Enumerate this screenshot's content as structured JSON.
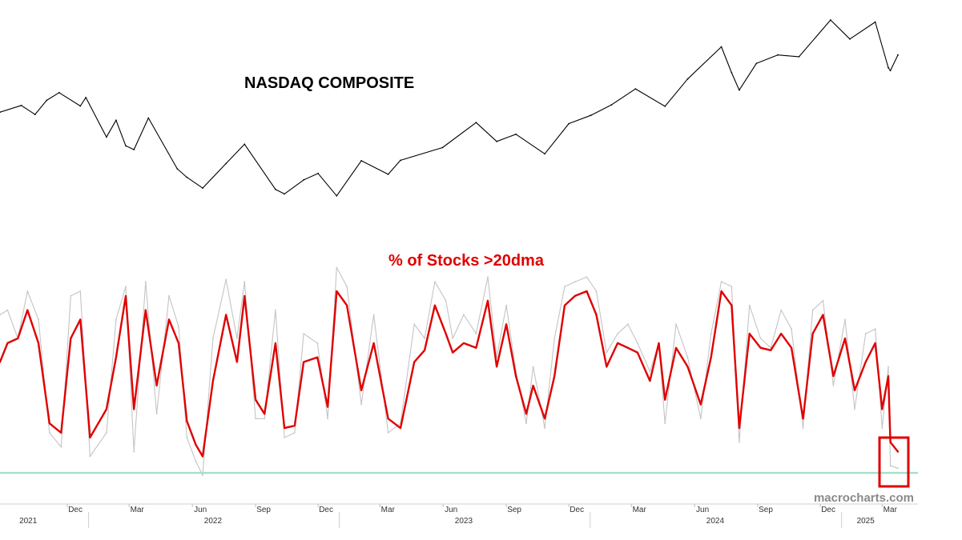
{
  "chart_data": [
    {
      "type": "line",
      "title": "NASDAQ COMPOSITE",
      "y_axis_labels": false,
      "grid": false,
      "series": [
        {
          "style": "black",
          "x": [
            "2021-08-25",
            "2021-09-25",
            "2021-10-15",
            "2021-11-01",
            "2021-11-19",
            "2021-12-20",
            "2021-12-28",
            "2022-01-27",
            "2022-02-10",
            "2022-02-24",
            "2022-03-08",
            "2022-03-29",
            "2022-05-10",
            "2022-05-24",
            "2022-06-16",
            "2022-07-20",
            "2022-08-16",
            "2022-09-30",
            "2022-10-13",
            "2022-11-10",
            "2022-12-01",
            "2022-12-28",
            "2023-02-02",
            "2023-03-13",
            "2023-03-31",
            "2023-05-31",
            "2023-07-19",
            "2023-08-18",
            "2023-09-15",
            "2023-10-27",
            "2023-12-01",
            "2024-01-02",
            "2024-02-01",
            "2024-03-07",
            "2024-04-19",
            "2024-05-22",
            "2024-07-10",
            "2024-07-25",
            "2024-08-05",
            "2024-08-30",
            "2024-09-30",
            "2024-10-31",
            "2024-12-16",
            "2025-01-13",
            "2025-02-19",
            "2025-03-10",
            "2025-03-13",
            "2025-03-24"
          ],
          "y": [
            14950,
            15330,
            14820,
            15620,
            16057,
            15300,
            15780,
            13540,
            14490,
            13040,
            12830,
            14620,
            11740,
            11260,
            10650,
            12040,
            13130,
            10575,
            10320,
            11110,
            11480,
            10210,
            12200,
            11430,
            12220,
            12940,
            14360,
            13290,
            13700,
            12590,
            14300,
            14770,
            15360,
            16270,
            15280,
            16830,
            18650,
            17180,
            16200,
            17710,
            18190,
            18090,
            20170,
            19090,
            20056,
            17470,
            17300,
            18190
          ]
        }
      ]
    },
    {
      "type": "line",
      "title": "% of Stocks >20dma",
      "y_axis_labels": false,
      "grid": false,
      "reference_line": 3,
      "series": [
        {
          "style": "raw (gray)",
          "x": [
            "2021-08-25",
            "2021-09-05",
            "2021-09-20",
            "2021-10-04",
            "2021-10-20",
            "2021-11-05",
            "2021-11-22",
            "2021-12-06",
            "2021-12-20",
            "2022-01-03",
            "2022-01-27",
            "2022-02-10",
            "2022-02-24",
            "2022-03-08",
            "2022-03-25",
            "2022-04-10",
            "2022-04-28",
            "2022-05-12",
            "2022-05-24",
            "2022-06-06",
            "2022-06-16",
            "2022-07-01",
            "2022-07-20",
            "2022-08-05",
            "2022-08-16",
            "2022-09-01",
            "2022-09-14",
            "2022-09-30",
            "2022-10-13",
            "2022-10-28",
            "2022-11-10",
            "2022-11-30",
            "2022-12-15",
            "2022-12-28",
            "2023-01-12",
            "2023-02-02",
            "2023-02-20",
            "2023-03-13",
            "2023-03-31",
            "2023-04-20",
            "2023-05-05",
            "2023-05-20",
            "2023-06-05",
            "2023-06-15",
            "2023-07-01",
            "2023-07-19",
            "2023-08-05",
            "2023-08-18",
            "2023-09-01",
            "2023-09-15",
            "2023-09-30",
            "2023-10-10",
            "2023-10-27",
            "2023-11-10",
            "2023-11-25",
            "2023-12-10",
            "2023-12-27",
            "2024-01-10",
            "2024-01-25",
            "2024-02-10",
            "2024-02-25",
            "2024-03-10",
            "2024-03-28",
            "2024-04-10",
            "2024-04-19",
            "2024-05-05",
            "2024-05-22",
            "2024-06-10",
            "2024-06-25",
            "2024-07-10",
            "2024-07-25",
            "2024-08-05",
            "2024-08-20",
            "2024-09-05",
            "2024-09-20",
            "2024-10-05",
            "2024-10-20",
            "2024-11-06",
            "2024-11-20",
            "2024-12-05",
            "2024-12-20",
            "2025-01-06",
            "2025-01-20",
            "2025-02-05",
            "2025-02-19",
            "2025-03-01",
            "2025-03-10",
            "2025-03-13",
            "2025-03-24"
          ],
          "y": [
            70,
            72,
            60,
            80,
            68,
            20,
            14,
            78,
            80,
            10,
            20,
            68,
            82,
            12,
            84,
            28,
            78,
            65,
            18,
            8,
            2,
            60,
            85,
            60,
            84,
            26,
            26,
            72,
            18,
            20,
            62,
            58,
            26,
            90,
            82,
            32,
            70,
            20,
            24,
            66,
            60,
            84,
            76,
            60,
            70,
            62,
            86,
            52,
            74,
            46,
            24,
            48,
            22,
            60,
            82,
            84,
            86,
            80,
            54,
            62,
            66,
            58,
            46,
            58,
            24,
            66,
            52,
            26,
            62,
            84,
            82,
            16,
            74,
            60,
            56,
            72,
            64,
            22,
            72,
            76,
            40,
            68,
            30,
            62,
            64,
            22,
            48,
            6,
            5
          ]
        },
        {
          "style": "smoothed (red)",
          "x": [
            "2021-08-25",
            "2021-09-05",
            "2021-09-20",
            "2021-10-04",
            "2021-10-20",
            "2021-11-05",
            "2021-11-22",
            "2021-12-06",
            "2021-12-20",
            "2022-01-03",
            "2022-01-27",
            "2022-02-10",
            "2022-02-24",
            "2022-03-08",
            "2022-03-25",
            "2022-04-10",
            "2022-04-28",
            "2022-05-12",
            "2022-05-24",
            "2022-06-06",
            "2022-06-16",
            "2022-07-01",
            "2022-07-20",
            "2022-08-05",
            "2022-08-16",
            "2022-09-01",
            "2022-09-14",
            "2022-09-30",
            "2022-10-13",
            "2022-10-28",
            "2022-11-10",
            "2022-11-30",
            "2022-12-15",
            "2022-12-28",
            "2023-01-12",
            "2023-02-02",
            "2023-02-20",
            "2023-03-13",
            "2023-03-31",
            "2023-04-20",
            "2023-05-05",
            "2023-05-20",
            "2023-06-05",
            "2023-06-15",
            "2023-07-01",
            "2023-07-19",
            "2023-08-05",
            "2023-08-18",
            "2023-09-01",
            "2023-09-15",
            "2023-09-30",
            "2023-10-10",
            "2023-10-27",
            "2023-11-10",
            "2023-11-25",
            "2023-12-10",
            "2023-12-27",
            "2024-01-10",
            "2024-01-25",
            "2024-02-10",
            "2024-02-25",
            "2024-03-10",
            "2024-03-28",
            "2024-04-10",
            "2024-04-19",
            "2024-05-05",
            "2024-05-22",
            "2024-06-10",
            "2024-06-25",
            "2024-07-10",
            "2024-07-25",
            "2024-08-05",
            "2024-08-20",
            "2024-09-05",
            "2024-09-20",
            "2024-10-05",
            "2024-10-20",
            "2024-11-06",
            "2024-11-20",
            "2024-12-05",
            "2024-12-20",
            "2025-01-06",
            "2025-01-20",
            "2025-02-05",
            "2025-02-19",
            "2025-03-01",
            "2025-03-10",
            "2025-03-13",
            "2025-03-24"
          ],
          "y": [
            50,
            58,
            60,
            72,
            58,
            24,
            20,
            60,
            68,
            18,
            30,
            52,
            78,
            30,
            72,
            40,
            68,
            58,
            25,
            15,
            10,
            42,
            70,
            50,
            78,
            34,
            28,
            58,
            22,
            23,
            50,
            52,
            31,
            80,
            74,
            38,
            58,
            26,
            22,
            50,
            55,
            74,
            62,
            54,
            58,
            56,
            76,
            48,
            66,
            44,
            28,
            40,
            26,
            44,
            74,
            78,
            80,
            70,
            48,
            58,
            56,
            54,
            42,
            58,
            34,
            56,
            48,
            32,
            52,
            80,
            74,
            22,
            62,
            56,
            55,
            62,
            56,
            26,
            62,
            70,
            44,
            60,
            38,
            50,
            58,
            30,
            44,
            16,
            12
          ]
        }
      ]
    }
  ],
  "x_axis": {
    "months": [
      "Dec",
      "Mar",
      "Jun",
      "Sep",
      "Dec",
      "Mar",
      "Jun",
      "Sep",
      "Dec",
      "Mar",
      "Jun",
      "Sep",
      "Dec",
      "Mar"
    ],
    "years": [
      "2021",
      "2022",
      "2023",
      "2024",
      "2025"
    ]
  },
  "highlight": "box around latest reading (March 2025)",
  "watermark": "macrocharts.com",
  "colors": {
    "price": "#000000",
    "raw": "#c4c4c4",
    "smoothed": "#e00000",
    "title_lower": "#e00000",
    "reference": "#a8e0c8",
    "highlight": "#e00000"
  }
}
